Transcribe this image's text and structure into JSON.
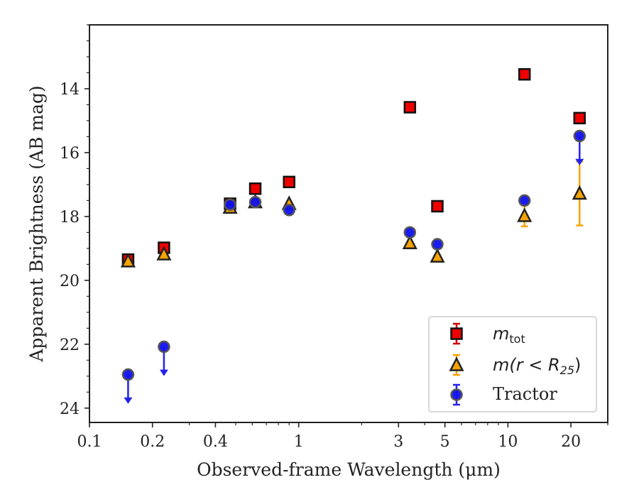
{
  "chart_data": {
    "type": "scatter",
    "xlabel": "Observed-frame Wavelength (μm)",
    "ylabel": "Apparent Brightness (AB mag)",
    "x_scale": "log",
    "xlim": [
      0.1,
      30
    ],
    "ylim": [
      24.45,
      12.0
    ],
    "y_inverted": true,
    "x_ticks": [
      {
        "value": 0.1,
        "label": "0.1"
      },
      {
        "value": 0.2,
        "label": "0.2"
      },
      {
        "value": 0.4,
        "label": "0.4"
      },
      {
        "value": 1,
        "label": "1"
      },
      {
        "value": 3,
        "label": "3"
      },
      {
        "value": 5,
        "label": "5"
      },
      {
        "value": 10,
        "label": "10"
      },
      {
        "value": 20,
        "label": "20"
      }
    ],
    "y_ticks": [
      {
        "value": 14,
        "label": "14"
      },
      {
        "value": 16,
        "label": "16"
      },
      {
        "value": 18,
        "label": "18"
      },
      {
        "value": 20,
        "label": "20"
      },
      {
        "value": 22,
        "label": "22"
      },
      {
        "value": 24,
        "label": "24"
      }
    ],
    "grid": false,
    "legend_position": "bottom-right",
    "series": [
      {
        "name": "m_tot",
        "marker": "square",
        "face_color": "#ee0000",
        "edge_color": "#111111",
        "error_color": "#cc0000",
        "points": [
          {
            "x": 0.153,
            "y": 19.35
          },
          {
            "x": 0.227,
            "y": 18.98
          },
          {
            "x": 0.47,
            "y": 17.6
          },
          {
            "x": 0.62,
            "y": 17.13
          },
          {
            "x": 0.9,
            "y": 16.92
          },
          {
            "x": 3.4,
            "y": 14.58
          },
          {
            "x": 4.6,
            "y": 17.68
          },
          {
            "x": 12.0,
            "y": 13.55
          },
          {
            "x": 22.0,
            "y": 14.92
          }
        ]
      },
      {
        "name": "m(r<R_25)",
        "marker": "triangle",
        "face_color": "#f5a300",
        "edge_color": "#222222",
        "error_color": "#f5a300",
        "points": [
          {
            "x": 0.153,
            "y": 19.4
          },
          {
            "x": 0.227,
            "y": 19.18
          },
          {
            "x": 0.47,
            "y": 17.72
          },
          {
            "x": 0.62,
            "y": 17.55
          },
          {
            "x": 0.9,
            "y": 17.6
          },
          {
            "x": 3.4,
            "y": 18.83
          },
          {
            "x": 4.6,
            "y": 19.25
          },
          {
            "x": 12.0,
            "y": 17.98,
            "err_lo": 0.33,
            "err_hi": 0.33
          },
          {
            "x": 22.0,
            "y": 17.28,
            "err_lo": 1.0,
            "err_hi": 1.0
          }
        ]
      },
      {
        "name": "Tractor",
        "marker": "circle",
        "face_color": "#1010ee",
        "edge_color": "#555555",
        "error_color": "#2222ee",
        "points": [
          {
            "x": 0.153,
            "y": 22.95,
            "upper_limit": true
          },
          {
            "x": 0.227,
            "y": 22.08,
            "upper_limit": true
          },
          {
            "x": 0.47,
            "y": 17.63
          },
          {
            "x": 0.62,
            "y": 17.55
          },
          {
            "x": 0.9,
            "y": 17.8
          },
          {
            "x": 3.4,
            "y": 18.5
          },
          {
            "x": 4.6,
            "y": 18.87
          },
          {
            "x": 12.0,
            "y": 17.5
          },
          {
            "x": 22.0,
            "y": 15.48,
            "upper_limit": true
          }
        ]
      }
    ]
  },
  "legend": {
    "items": [
      {
        "label_main": "m",
        "label_sub": "tot",
        "label_rest": ""
      },
      {
        "label_main": "m(r < R",
        "label_sub": "25",
        "label_rest": ")"
      },
      {
        "label_main": "Tractor",
        "label_sub": "",
        "label_rest": ""
      }
    ]
  }
}
